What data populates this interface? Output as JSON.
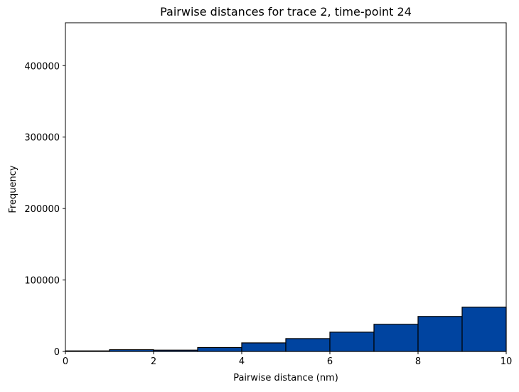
{
  "chart_data": {
    "type": "bar",
    "title": "Pairwise distances for trace 2, time-point 24",
    "xlabel": "Pairwise distance (nm)",
    "ylabel": "Frequency",
    "xlim": [
      0,
      10
    ],
    "ylim": [
      0,
      460000
    ],
    "xticks": [
      0,
      2,
      4,
      6,
      8,
      10
    ],
    "yticks": [
      0,
      100000,
      200000,
      300000,
      400000
    ],
    "grid": false,
    "bar_color": "#0044a0",
    "edge_color": "#000000",
    "bins": [
      {
        "x0": 0,
        "x1": 1,
        "value": 800
      },
      {
        "x0": 1,
        "x1": 2,
        "value": 2500
      },
      {
        "x0": 2,
        "x1": 3,
        "value": 1800
      },
      {
        "x0": 3,
        "x1": 4,
        "value": 5500
      },
      {
        "x0": 4,
        "x1": 5,
        "value": 12000
      },
      {
        "x0": 5,
        "x1": 6,
        "value": 18000
      },
      {
        "x0": 6,
        "x1": 7,
        "value": 27000
      },
      {
        "x0": 7,
        "x1": 8,
        "value": 38000
      },
      {
        "x0": 8,
        "x1": 9,
        "value": 49000
      },
      {
        "x0": 9,
        "x1": 10,
        "value": 62000
      }
    ]
  }
}
